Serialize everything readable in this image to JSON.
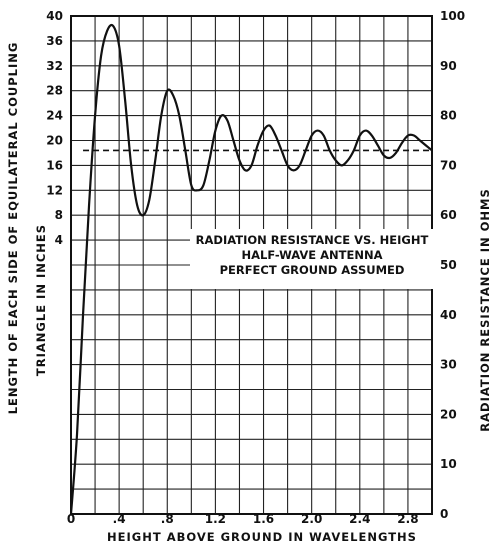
{
  "chart_data": {
    "type": "line",
    "legend_lines": [
      "RADIATION RESISTANCE VS. HEIGHT",
      "HALF-WAVE ANTENNA",
      "PERFECT GROUND ASSUMED"
    ],
    "legend_placement": "center-right",
    "xlabel": "HEIGHT ABOVE GROUND IN WAVELENGTHS",
    "ylabel_left_line1": "LENGTH OF EACH SIDE OF EQUILATERAL COUPLING",
    "ylabel_left_line2": "TRIANGLE IN INCHES",
    "ylabel_right": "RADIATION RESISTANCE IN OHMS",
    "xlim": [
      0,
      3.0
    ],
    "xticks": [
      "0",
      ".4",
      ".8",
      "1.2",
      "1.6",
      "2.0",
      "2.4",
      "2.8"
    ],
    "xtick_values": [
      0,
      0.4,
      0.8,
      1.2,
      1.6,
      2.0,
      2.4,
      2.8
    ],
    "ylim_right": [
      0,
      100
    ],
    "yticks_right": [
      "0",
      "10",
      "20",
      "30",
      "40",
      "50",
      "60",
      "70",
      "80",
      "90",
      "100"
    ],
    "yticks_left": [
      "40",
      "36",
      "32",
      "28",
      "24",
      "20",
      "16",
      "12",
      "8",
      "4"
    ],
    "yticks_left_positions": [
      100,
      95,
      90,
      85,
      80,
      75,
      70,
      65,
      60,
      55
    ],
    "grid": true,
    "series": [
      {
        "style": "solid",
        "x": [
          0,
          0.05,
          0.1,
          0.15,
          0.2,
          0.25,
          0.3,
          0.35,
          0.4,
          0.45,
          0.5,
          0.55,
          0.6,
          0.65,
          0.7,
          0.75,
          0.8,
          0.85,
          0.9,
          0.95,
          1.0,
          1.05,
          1.1,
          1.15,
          1.2,
          1.25,
          1.3,
          1.35,
          1.4,
          1.45,
          1.5,
          1.55,
          1.6,
          1.65,
          1.7,
          1.75,
          1.8,
          1.85,
          1.9,
          1.95,
          2.0,
          2.05,
          2.1,
          2.15,
          2.2,
          2.25,
          2.3,
          2.35,
          2.4,
          2.45,
          2.5,
          2.55,
          2.6,
          2.65,
          2.7,
          2.75,
          2.8,
          2.85,
          2.9,
          2.95,
          3.0
        ],
        "y": [
          0,
          16,
          40,
          62,
          80,
          92,
          97,
          98,
          94,
          83,
          70,
          62,
          60,
          63,
          71,
          80,
          85,
          84,
          80,
          73,
          66,
          65,
          66,
          71,
          77,
          80,
          79,
          75,
          71,
          69,
          70,
          74,
          77,
          78,
          76,
          73,
          70,
          69,
          70,
          73,
          76,
          77,
          76,
          73,
          71,
          70,
          71,
          73,
          76,
          77,
          76,
          74,
          72,
          71.5,
          72.5,
          74.5,
          76,
          76,
          75,
          74,
          73
        ]
      },
      {
        "style": "dashed",
        "x": [
          0.1,
          3.0
        ],
        "y": [
          73,
          73
        ]
      }
    ]
  }
}
